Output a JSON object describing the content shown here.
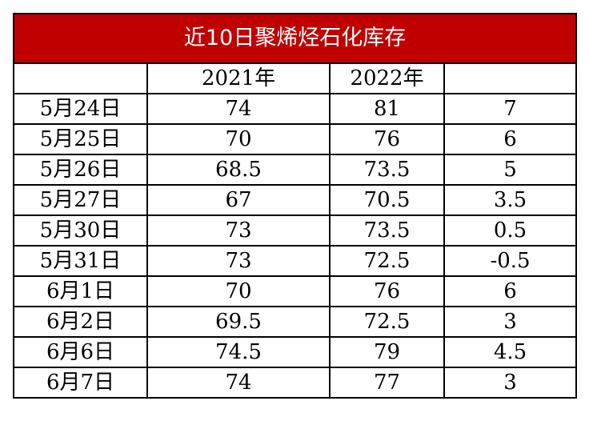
{
  "table": {
    "title": "近10日聚烯烃石化库存",
    "headers": [
      "",
      "2021年",
      "2022年",
      ""
    ],
    "rows": [
      [
        "5月24日",
        "74",
        "81",
        "7"
      ],
      [
        "5月25日",
        "70",
        "76",
        "6"
      ],
      [
        "5月26日",
        "68.5",
        "73.5",
        "5"
      ],
      [
        "5月27日",
        "67",
        "70.5",
        "3.5"
      ],
      [
        "5月30日",
        "73",
        "73.5",
        "0.5"
      ],
      [
        "5月31日",
        "73",
        "72.5",
        "-0.5"
      ],
      [
        "6月1日",
        "70",
        "76",
        "6"
      ],
      [
        "6月2日",
        "69.5",
        "72.5",
        "3"
      ],
      [
        "6月6日",
        "74.5",
        "79",
        "4.5"
      ],
      [
        "6月7日",
        "74",
        "77",
        "3"
      ]
    ]
  },
  "colors": {
    "title_bg": "#c00000",
    "title_text": "#ffffff",
    "border": "#000000"
  }
}
